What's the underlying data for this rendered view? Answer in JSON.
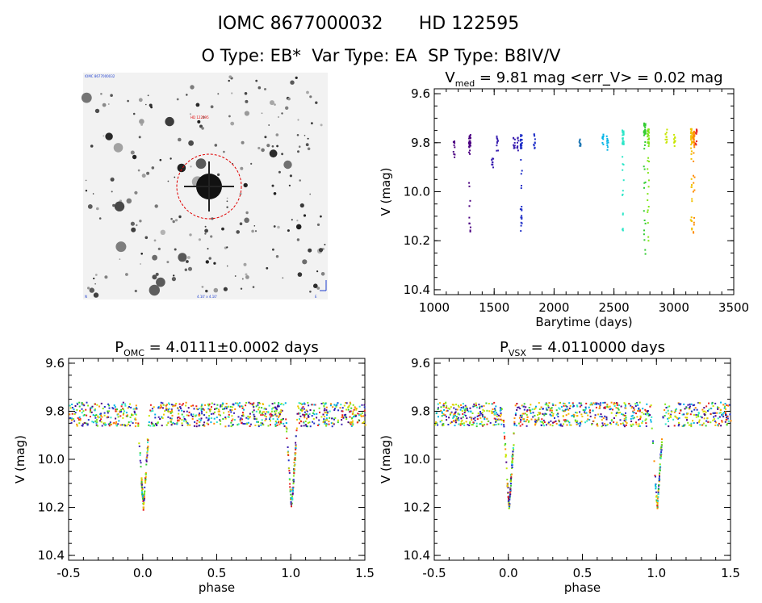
{
  "header": {
    "title_left": "IOMC 8677000032",
    "title_right": "HD 122595",
    "types": "O Type: EB*  Var Type: EA  SP Type: B8IV/V"
  },
  "image_panel": {
    "description_label": "sky image cutout",
    "tiny_top_left": "IOMC 8677000032",
    "tiny_center_top": "HD 122595",
    "tiny_bottom_center": "4.10' x 4.10'",
    "tiny_bottom_left": "N",
    "tiny_bottom_right": "E"
  },
  "colors": {
    "palette": [
      "#4b0082",
      "#3a1fb0",
      "#2030c8",
      "#00b3e6",
      "#2ee6c8",
      "#33cc33",
      "#7fe619",
      "#c8e600",
      "#f0c000",
      "#ff8c00",
      "#e62020"
    ]
  },
  "chart_data": [
    {
      "id": "lightcurve",
      "type": "scatter",
      "title_main": "V",
      "title_sub": "med",
      "title_rest": " = 9.81 mag <err_V> = 0.02 mag",
      "xlabel": "Barytime (days)",
      "ylabel": "V (mag)",
      "xlim": [
        1000,
        3500
      ],
      "ylim": [
        10.42,
        9.58
      ],
      "xticks": [
        1000,
        1500,
        2000,
        2500,
        3000,
        3500
      ],
      "yticks": [
        9.6,
        9.8,
        10.0,
        10.2,
        10.4
      ],
      "ytick_labels": [
        "9.6",
        "9.8",
        "10.0",
        "10.2",
        "10.4"
      ],
      "xtick_labels": [
        "1000",
        "1500",
        "2000",
        "2500",
        "3000",
        "3500"
      ],
      "groups": [
        {
          "x": 1160,
          "ymin": 9.79,
          "ymax": 9.86,
          "color": "#4b0082"
        },
        {
          "x": 1290,
          "ymin": 9.76,
          "ymax": 10.2,
          "color": "#4b0082"
        },
        {
          "x": 1480,
          "ymin": 9.86,
          "ymax": 9.9,
          "color": "#3a1fb0"
        },
        {
          "x": 1520,
          "ymin": 9.77,
          "ymax": 9.84,
          "color": "#3a1fb0"
        },
        {
          "x": 1660,
          "ymin": 9.77,
          "ymax": 9.82,
          "color": "#3a1fb0"
        },
        {
          "x": 1690,
          "ymin": 9.77,
          "ymax": 9.84,
          "color": "#3a1fb0"
        },
        {
          "x": 1720,
          "ymin": 9.76,
          "ymax": 10.2,
          "color": "#2030c8"
        },
        {
          "x": 1830,
          "ymin": 9.76,
          "ymax": 9.86,
          "color": "#2030c8"
        },
        {
          "x": 2210,
          "ymin": 9.78,
          "ymax": 9.81,
          "color": "#1f77b4"
        },
        {
          "x": 2400,
          "ymin": 9.74,
          "ymax": 9.82,
          "color": "#00b3e6"
        },
        {
          "x": 2440,
          "ymin": 9.77,
          "ymax": 9.84,
          "color": "#00b3e6"
        },
        {
          "x": 2570,
          "ymin": 9.74,
          "ymax": 10.2,
          "color": "#2ee6c8"
        },
        {
          "x": 2750,
          "ymin": 9.71,
          "ymax": 10.27,
          "color": "#33cc33"
        },
        {
          "x": 2780,
          "ymin": 9.74,
          "ymax": 10.21,
          "color": "#7fe619"
        },
        {
          "x": 2930,
          "ymin": 9.74,
          "ymax": 9.8,
          "color": "#c8e600"
        },
        {
          "x": 3000,
          "ymin": 9.76,
          "ymax": 9.82,
          "color": "#c8e600"
        },
        {
          "x": 3140,
          "ymin": 9.74,
          "ymax": 10.19,
          "color": "#f0c000"
        },
        {
          "x": 3160,
          "ymin": 9.75,
          "ymax": 10.17,
          "color": "#ff8c00"
        },
        {
          "x": 3180,
          "ymin": 9.74,
          "ymax": 9.84,
          "color": "#e62020"
        }
      ]
    },
    {
      "id": "phase_omc",
      "type": "scatter",
      "title_main": "P",
      "title_sub": "OMC",
      "title_rest": " = 4.0111±0.0002 days",
      "xlabel": "phase",
      "ylabel": "V (mag)",
      "xlim": [
        -0.5,
        1.5
      ],
      "ylim": [
        10.42,
        9.58
      ],
      "xticks": [
        -0.5,
        0.0,
        0.5,
        1.0,
        1.5
      ],
      "xtick_labels": [
        "-0.5",
        "0.0",
        "0.5",
        "1.0",
        "1.5"
      ],
      "yticks": [
        9.6,
        9.8,
        10.0,
        10.2,
        10.4
      ],
      "ytick_labels": [
        "9.6",
        "9.8",
        "10.0",
        "10.2",
        "10.4"
      ],
      "baseline_mag": 9.81,
      "eclipse_depth_mag": 10.2,
      "eclipse_centers": [
        0.0,
        1.0
      ]
    },
    {
      "id": "phase_vsx",
      "type": "scatter",
      "title_main": "P",
      "title_sub": "VSX",
      "title_rest": " = 4.0110000 days",
      "xlabel": "phase",
      "ylabel": "V (mag)",
      "xlim": [
        -0.5,
        1.5
      ],
      "ylim": [
        10.42,
        9.58
      ],
      "xticks": [
        -0.5,
        0.0,
        0.5,
        1.0,
        1.5
      ],
      "xtick_labels": [
        "-0.5",
        "0.0",
        "0.5",
        "1.0",
        "1.5"
      ],
      "yticks": [
        9.6,
        9.8,
        10.0,
        10.2,
        10.4
      ],
      "ytick_labels": [
        "9.6",
        "9.8",
        "10.0",
        "10.2",
        "10.4"
      ],
      "baseline_mag": 9.81,
      "eclipse_depth_mag": 10.2,
      "eclipse_centers": [
        0.0,
        1.0
      ]
    }
  ]
}
